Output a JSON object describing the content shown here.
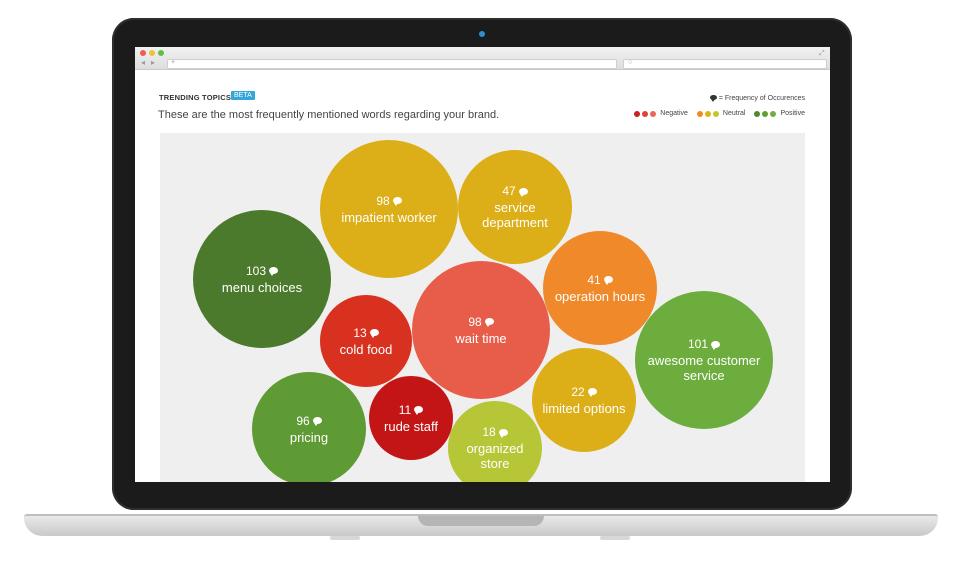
{
  "header": {
    "title": "TRENDING TOPICS",
    "badge": "BETA",
    "subtitle": "These are the most frequently mentioned words regarding your brand."
  },
  "legend": {
    "frequency_label": "= Frequency of Occurences",
    "groups": [
      {
        "label": "Negative",
        "colors": [
          "#c9211e",
          "#e0413a",
          "#ea6a5a"
        ]
      },
      {
        "label": "Neutral",
        "colors": [
          "#f08a24",
          "#dfb217",
          "#c8c42c"
        ]
      },
      {
        "label": "Positive",
        "colors": [
          "#4f8a2b",
          "#5f9e34",
          "#74ad3e"
        ]
      }
    ]
  },
  "topics": [
    {
      "label": "menu choices",
      "count": "103",
      "color": "#4b7a2c"
    },
    {
      "label": "impatient worker",
      "count": "98",
      "color": "#dcae17"
    },
    {
      "label": "service department",
      "count": "47",
      "color": "#dcae17"
    },
    {
      "label": "operation hours",
      "count": "41",
      "color": "#f0892a"
    },
    {
      "label": "cold food",
      "count": "13",
      "color": "#d8311f"
    },
    {
      "label": "wait time",
      "count": "98",
      "color": "#e85d4a"
    },
    {
      "label": "awesome customer service",
      "count": "101",
      "color": "#6cad3e"
    },
    {
      "label": "pricing",
      "count": "96",
      "color": "#5f9b35"
    },
    {
      "label": "rude staff",
      "count": "11",
      "color": "#c31515"
    },
    {
      "label": "limited options",
      "count": "22",
      "color": "#dcae17"
    },
    {
      "label": "organized store",
      "count": "18",
      "color": "#b6c637"
    }
  ]
}
